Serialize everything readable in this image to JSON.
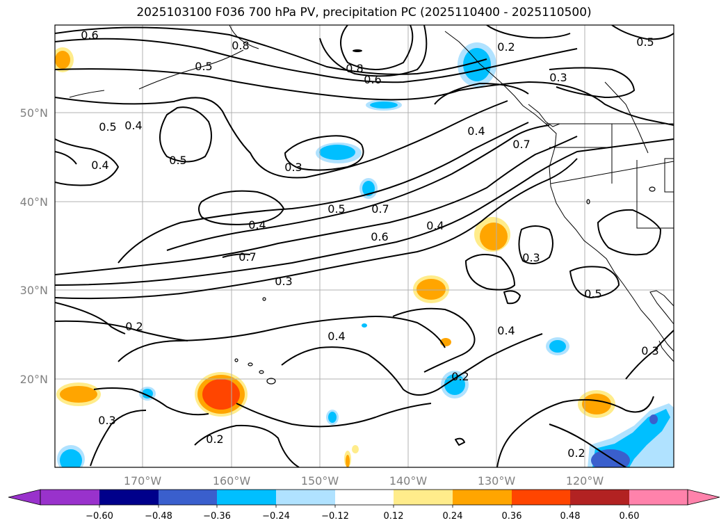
{
  "title": "2025103100 F036 700 hPa PV, precipitation PC (2025110400 - 2025110500)",
  "longitude_labels": [
    "170°W",
    "160°W",
    "150°W",
    "140°W",
    "130°W",
    "120°W"
  ],
  "latitude_labels": [
    "50°N",
    "40°N",
    "30°N",
    "20°N"
  ],
  "contour_labels": [
    "0.6",
    "0.8",
    "0.5",
    "0.8",
    "0.6",
    "0.2",
    "0.5",
    "0.3",
    "0.4",
    "0.5",
    "0.4",
    "0.5",
    "0.3",
    "0.4",
    "0.7",
    "0.5",
    "0.7",
    "0.6",
    "0.4",
    "0.4",
    "0.7",
    "0.3",
    "0.3",
    "0.5",
    "0.2",
    "0.4",
    "0.4",
    "0.2",
    "0.3",
    "0.3",
    "0.2",
    "0.2"
  ],
  "colorbar": {
    "ticks": [
      "−0.60",
      "−0.48",
      "−0.36",
      "−0.24",
      "−0.12",
      "0.12",
      "0.24",
      "0.36",
      "0.48",
      "0.60"
    ],
    "colors": [
      "#9932cc",
      "#00008b",
      "#3a5fcd",
      "#00bfff",
      "#b0e2ff",
      "#ffffff",
      "#ffec8b",
      "#ffa500",
      "#ff4500",
      "#b22222",
      "#ff82ab"
    ]
  },
  "chart_data": {
    "type": "map",
    "title": "2025103100 F036 700 hPa PV, precipitation PC (2025110400 - 2025110500)",
    "contour_field": "700 hPa PV",
    "fill_field": "precipitation PC",
    "lon_range": [
      -180,
      -110
    ],
    "lat_range": [
      10,
      60
    ],
    "contour_levels": [
      0.2,
      0.3,
      0.4,
      0.5,
      0.6,
      0.7,
      0.8
    ],
    "fill_levels": [
      -0.6,
      -0.48,
      -0.36,
      -0.24,
      -0.12,
      0.12,
      0.24,
      0.36,
      0.48,
      0.6
    ]
  }
}
